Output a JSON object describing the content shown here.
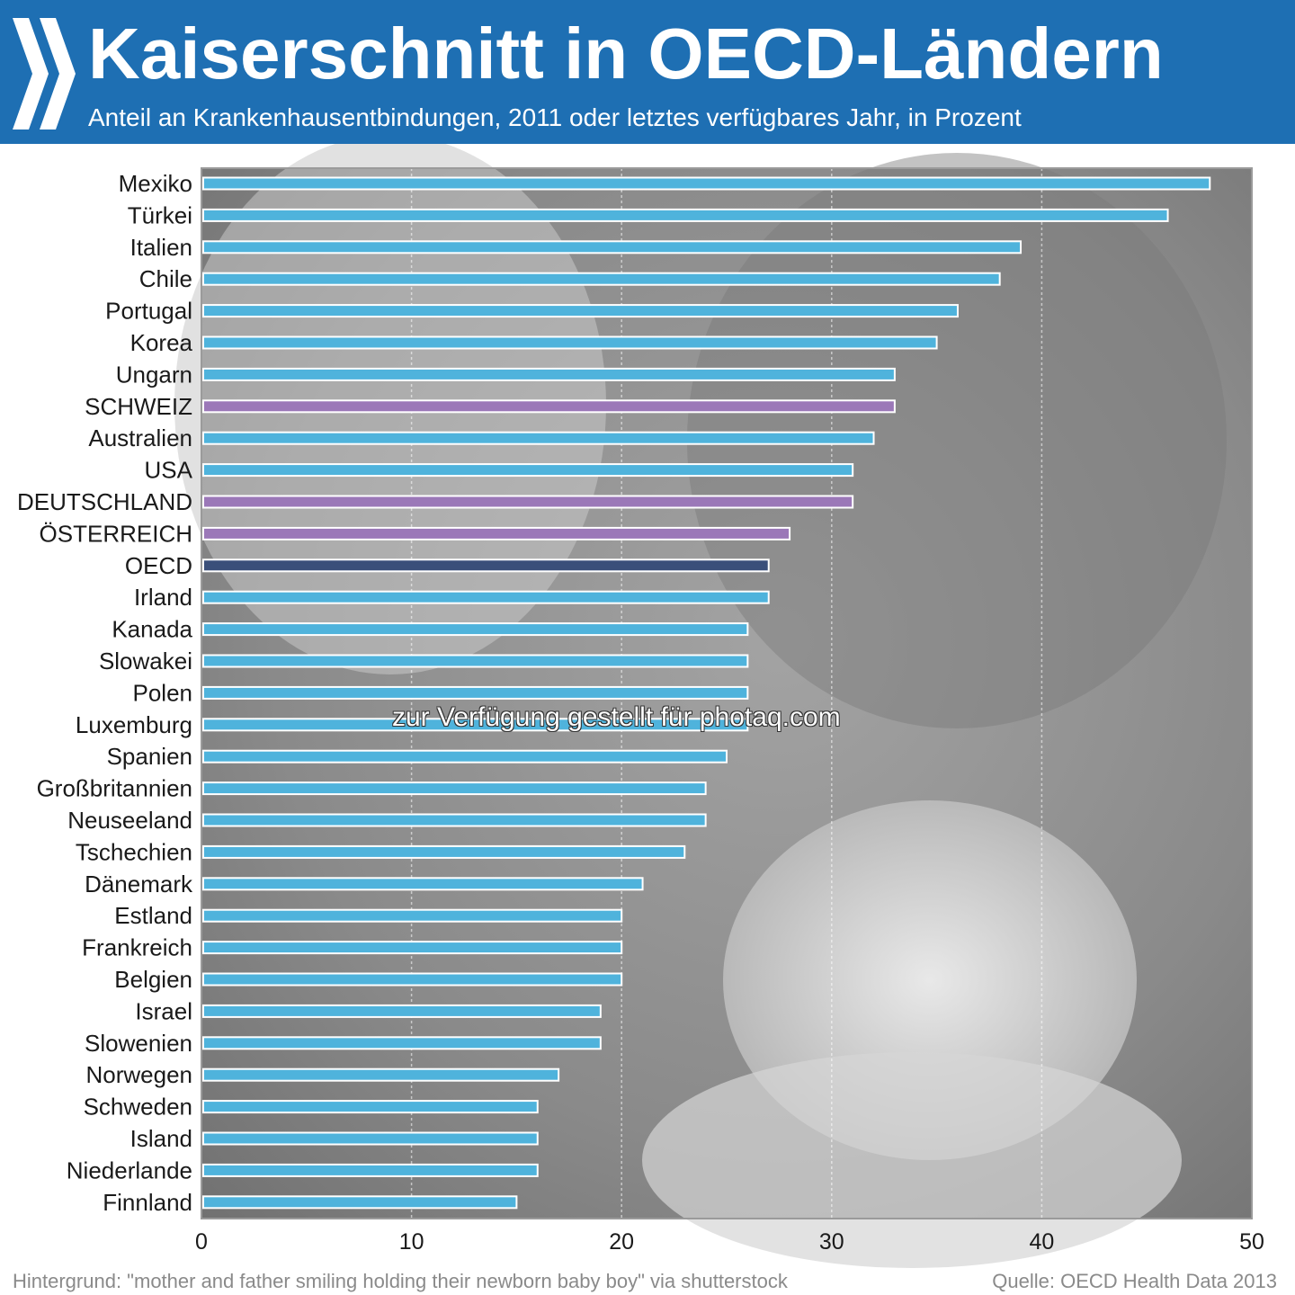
{
  "header": {
    "title": "Kaiserschnitt in OECD-Ländern",
    "subtitle": "Anteil an Krankenhausentbindungen, 2011 oder letztes verfügbares Jahr, in Prozent"
  },
  "watermark": "zur Verfügung gestellt für photaq.com",
  "footer": {
    "background_credit": "Hintergrund: \"mother and father smiling holding their newborn baby boy\" via shutterstock",
    "source": "Quelle: OECD Health Data 2013"
  },
  "colors": {
    "header_bg": "#1e6fb3",
    "bar_default": "#4fb3dc",
    "bar_highlight": "#9b78b8",
    "bar_oecd": "#3a4f7a",
    "photo_bg": "#8c8c8c"
  },
  "chart_data": {
    "type": "bar",
    "orientation": "horizontal",
    "categories": [
      "Mexiko",
      "Türkei",
      "Italien",
      "Chile",
      "Portugal",
      "Korea",
      "Ungarn",
      "SCHWEIZ",
      "Australien",
      "USA",
      "DEUTSCHLAND",
      "ÖSTERREICH",
      "OECD",
      "Irland",
      "Kanada",
      "Slowakei",
      "Polen",
      "Luxemburg",
      "Spanien",
      "Großbritannien",
      "Neuseeland",
      "Tschechien",
      "Dänemark",
      "Estland",
      "Frankreich",
      "Belgien",
      "Israel",
      "Slowenien",
      "Norwegen",
      "Schweden",
      "Island",
      "Niederlande",
      "Finnland"
    ],
    "values": [
      48,
      46,
      39,
      38,
      36,
      35,
      33,
      33,
      32,
      31,
      31,
      28,
      27,
      27,
      26,
      26,
      26,
      26,
      25,
      24,
      24,
      23,
      21,
      20,
      20,
      20,
      19,
      19,
      17,
      16,
      16,
      16,
      15
    ],
    "highlight": [
      "SCHWEIZ",
      "DEUTSCHLAND",
      "ÖSTERREICH"
    ],
    "average": "OECD",
    "xlim": [
      0,
      50
    ],
    "xticks": [
      "0",
      "10",
      "20",
      "30",
      "40",
      "50"
    ],
    "grid": true
  }
}
